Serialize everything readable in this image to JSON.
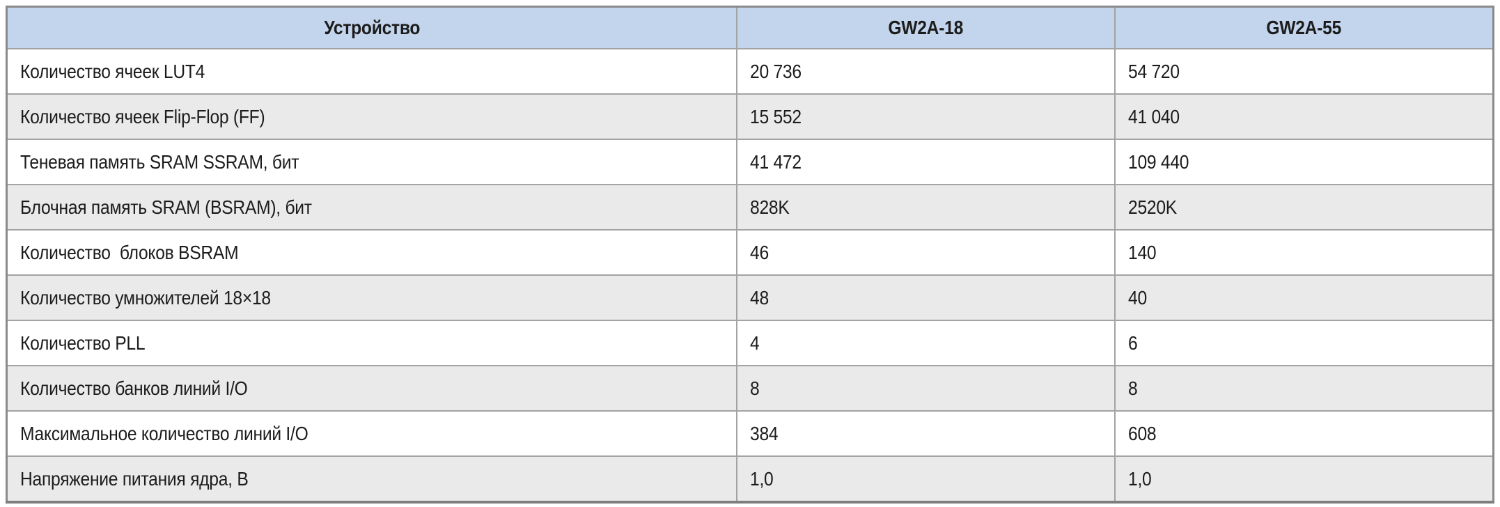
{
  "table": {
    "header": {
      "device_label": "Устройство",
      "col_gw2a18": "GW2A-18",
      "col_gw2a55": "GW2A-55"
    },
    "rows": [
      {
        "label": "Количество ячеек LUT4",
        "gw2a18": "20 736",
        "gw2a55": "54 720"
      },
      {
        "label": "Количество ячеек Flip-Flop (FF)",
        "gw2a18": "15 552",
        "gw2a55": "41 040"
      },
      {
        "label": "Теневая память SRAM SSRAM, бит",
        "gw2a18": "41 472",
        "gw2a55": "109 440"
      },
      {
        "label": "Блочная память SRAM (BSRAM), бит",
        "gw2a18": "828K",
        "gw2a55": "2520K"
      },
      {
        "label": "Количество  блоков BSRAM",
        "gw2a18": "46",
        "gw2a55": "140"
      },
      {
        "label": "Количество умножителей 18×18",
        "gw2a18": "48",
        "gw2a55": "40"
      },
      {
        "label": "Количество PLL",
        "gw2a18": "4",
        "gw2a55": "6"
      },
      {
        "label": "Количество банков линий I/O",
        "gw2a18": "8",
        "gw2a55": "8"
      },
      {
        "label": "Максимальное количество линий I/O",
        "gw2a18": "384",
        "gw2a55": "608"
      },
      {
        "label": "Напряжение питания ядра, В",
        "gw2a18": "1,0",
        "gw2a55": "1,0"
      }
    ]
  },
  "colors": {
    "header_bg": "#c3d5ec",
    "row_bg": "#ffffff",
    "row_alt_bg": "#eaeaea",
    "grid_line": "#a3a3a3",
    "outer_border": "#8a8a8a",
    "text": "#1c1c1c"
  }
}
